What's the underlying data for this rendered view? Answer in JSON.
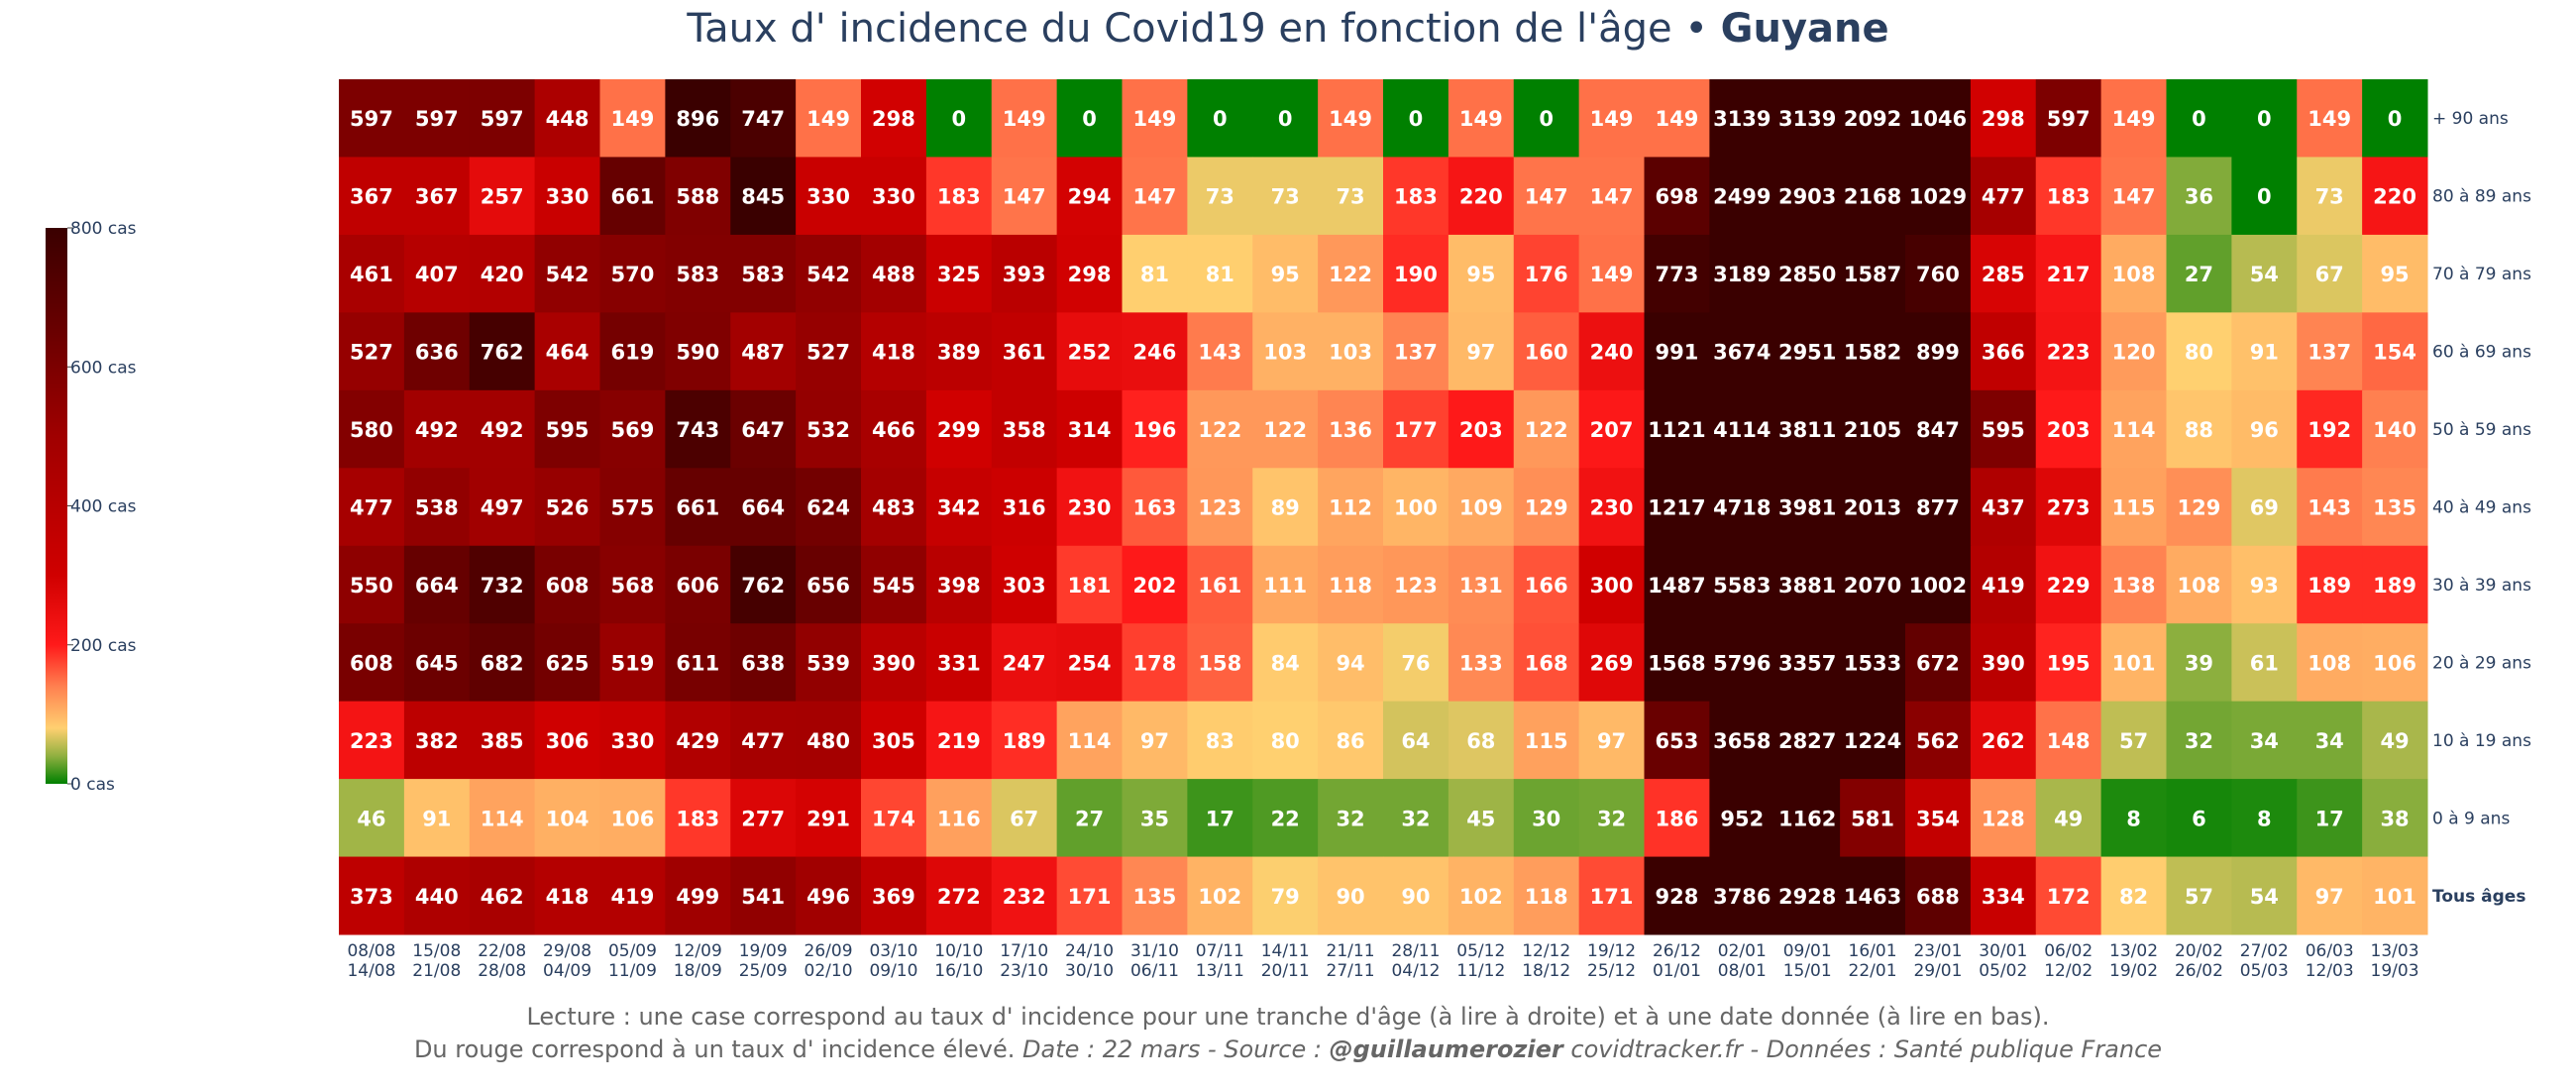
{
  "title": {
    "main": "Taux d' incidence du Covid19 en fonction de l'âge • ",
    "region": "Guyane"
  },
  "footer": {
    "line1": "Lecture : une case correspond au taux d' incidence pour une tranche d'âge (à lire à droite) et à une date donnée (à lire en bas).",
    "line2_plain": "Du rouge correspond à un taux d' incidence élevé.  ",
    "line2_date": "Date : 22 mars - Source : ",
    "line2_handle": "@guillaumerozier",
    "line2_site": " covidtracker.fr - Données : Santé publique France"
  },
  "colorbar": {
    "ticks": [
      {
        "value": 800,
        "label": "800 cas"
      },
      {
        "value": 600,
        "label": "600 cas"
      },
      {
        "value": 400,
        "label": "400 cas"
      },
      {
        "value": 200,
        "label": "200 cas"
      },
      {
        "value": 0,
        "label": "0 cas"
      }
    ],
    "colorscale": [
      [
        0,
        "#008000"
      ],
      [
        40,
        "#90b040"
      ],
      [
        80,
        "#ffd070"
      ],
      [
        140,
        "#ff8050"
      ],
      [
        200,
        "#ff1a1a"
      ],
      [
        300,
        "#d00000"
      ],
      [
        500,
        "#a00000"
      ],
      [
        650,
        "#6a0000"
      ],
      [
        800,
        "#3a0000"
      ]
    ]
  },
  "chart_data": {
    "type": "heatmap",
    "x": [
      "08/08\n14/08",
      "15/08\n21/08",
      "22/08\n28/08",
      "29/08\n04/09",
      "05/09\n11/09",
      "12/09\n18/09",
      "19/09\n25/09",
      "26/09\n02/10",
      "03/10\n09/10",
      "10/10\n16/10",
      "17/10\n23/10",
      "24/10\n30/10",
      "31/10\n06/11",
      "07/11\n13/11",
      "14/11\n20/11",
      "21/11\n27/11",
      "28/11\n04/12",
      "05/12\n11/12",
      "12/12\n18/12",
      "19/12\n25/12",
      "26/12\n01/01",
      "02/01\n08/01",
      "09/01\n15/01",
      "16/01\n22/01",
      "23/01\n29/01",
      "30/01\n05/02",
      "06/02\n12/02",
      "13/02\n19/02",
      "20/02\n26/02",
      "27/02\n05/03",
      "06/03\n12/03",
      "13/03\n19/03"
    ],
    "y": [
      "+ 90 ans",
      "80 à 89 ans",
      "70 à 79 ans",
      "60 à 69 ans",
      "50 à 59 ans",
      "40 à 49 ans",
      "30 à 39 ans",
      "20 à 29 ans",
      "10 à 19 ans",
      "0 à 9 ans",
      "Tous âges"
    ],
    "z": [
      [
        597,
        597,
        597,
        448,
        149,
        896,
        747,
        149,
        298,
        0,
        149,
        0,
        149,
        0,
        0,
        149,
        0,
        149,
        0,
        149,
        149,
        3139,
        3139,
        2092,
        1046,
        298,
        597,
        149,
        0,
        0,
        149,
        0
      ],
      [
        367,
        367,
        257,
        330,
        661,
        588,
        845,
        330,
        330,
        183,
        147,
        294,
        147,
        73,
        73,
        73,
        183,
        220,
        147,
        147,
        698,
        2499,
        2903,
        2168,
        1029,
        477,
        183,
        147,
        36,
        0,
        73,
        220
      ],
      [
        461,
        407,
        420,
        542,
        570,
        583,
        583,
        542,
        488,
        325,
        393,
        298,
        81,
        81,
        95,
        122,
        190,
        95,
        176,
        149,
        773,
        3189,
        2850,
        1587,
        760,
        285,
        217,
        108,
        27,
        54,
        67,
        95
      ],
      [
        527,
        636,
        762,
        464,
        619,
        590,
        487,
        527,
        418,
        389,
        361,
        252,
        246,
        143,
        103,
        103,
        137,
        97,
        160,
        240,
        991,
        3674,
        2951,
        1582,
        899,
        366,
        223,
        120,
        80,
        91,
        137,
        154
      ],
      [
        580,
        492,
        492,
        595,
        569,
        743,
        647,
        532,
        466,
        299,
        358,
        314,
        196,
        122,
        122,
        136,
        177,
        203,
        122,
        207,
        1121,
        4114,
        3811,
        2105,
        847,
        595,
        203,
        114,
        88,
        96,
        192,
        140
      ],
      [
        477,
        538,
        497,
        526,
        575,
        661,
        664,
        624,
        483,
        342,
        316,
        230,
        163,
        123,
        89,
        112,
        100,
        109,
        129,
        230,
        1217,
        4718,
        3981,
        2013,
        877,
        437,
        273,
        115,
        129,
        69,
        143,
        135
      ],
      [
        550,
        664,
        732,
        608,
        568,
        606,
        762,
        656,
        545,
        398,
        303,
        181,
        202,
        161,
        111,
        118,
        123,
        131,
        166,
        300,
        1487,
        5583,
        3881,
        2070,
        1002,
        419,
        229,
        138,
        108,
        93,
        189,
        189
      ],
      [
        608,
        645,
        682,
        625,
        519,
        611,
        638,
        539,
        390,
        331,
        247,
        254,
        178,
        158,
        84,
        94,
        76,
        133,
        168,
        269,
        1568,
        5796,
        3357,
        1533,
        672,
        390,
        195,
        101,
        39,
        61,
        108,
        106
      ],
      [
        223,
        382,
        385,
        306,
        330,
        429,
        477,
        480,
        305,
        219,
        189,
        114,
        97,
        83,
        80,
        86,
        64,
        68,
        115,
        97,
        653,
        3658,
        2827,
        1224,
        562,
        262,
        148,
        57,
        32,
        34,
        34,
        49
      ],
      [
        46,
        91,
        114,
        104,
        106,
        183,
        277,
        291,
        174,
        116,
        67,
        27,
        35,
        17,
        22,
        32,
        32,
        45,
        30,
        32,
        186,
        952,
        1162,
        581,
        354,
        128,
        49,
        8,
        6,
        8,
        17,
        38
      ],
      [
        373,
        440,
        462,
        418,
        419,
        499,
        541,
        496,
        369,
        272,
        232,
        171,
        135,
        102,
        79,
        90,
        90,
        102,
        118,
        171,
        928,
        3786,
        2928,
        1463,
        688,
        334,
        172,
        82,
        57,
        54,
        97,
        101
      ]
    ],
    "zmin": 0,
    "zmax": 800,
    "bold_row_label": "Tous âges"
  }
}
